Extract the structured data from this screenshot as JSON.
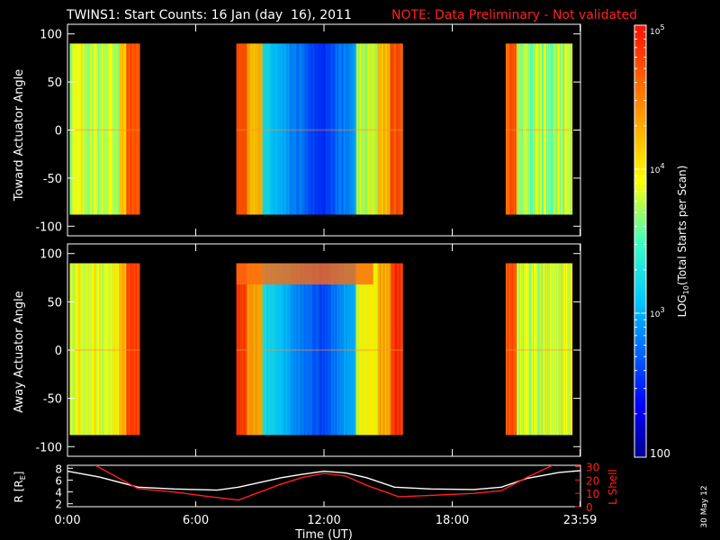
{
  "title": {
    "main": "TWINS1: Start Counts: 16 Jan (day  16), 2011",
    "note": "NOTE: Data Preliminary - Not validated",
    "note_color": "#ff2020"
  },
  "colors": {
    "axis": "#ffffff",
    "background": "#000000",
    "ephem_r": "#ffffff",
    "ephem_lshell": "#ff2020"
  },
  "date_stamp": "30 May 12",
  "chart_data": [
    {
      "type": "heatmap",
      "ylabel": "Toward Actuator Angle",
      "ylim": [
        -110,
        110
      ],
      "y_ticks": [
        "100",
        "50",
        "0",
        "-50",
        "-100"
      ],
      "xlim_hours": [
        0,
        24
      ],
      "data_blocks_hours": [
        [
          0.1,
          3.4
        ],
        [
          7.9,
          15.7
        ],
        [
          20.5,
          23.6
        ]
      ],
      "angle_range": [
        -88,
        90
      ],
      "grid": false
    },
    {
      "type": "heatmap",
      "ylabel": "Away Actuator Angle",
      "ylim": [
        -110,
        110
      ],
      "y_ticks": [
        "100",
        "50",
        "0",
        "-50",
        "-100"
      ],
      "xlim_hours": [
        0,
        24
      ],
      "data_blocks_hours": [
        [
          0.1,
          3.4
        ],
        [
          7.9,
          15.7
        ],
        [
          20.5,
          23.6
        ]
      ],
      "angle_range": [
        -88,
        90
      ],
      "grid": false
    },
    {
      "type": "line",
      "ylabel_left": "R [R",
      "ylabel_left_sub": "E",
      "ylabel_left_end": "]",
      "ylabel_right": "L Shell",
      "y_ticks_left": [
        "8",
        "6",
        "4",
        "2"
      ],
      "y_ticks_right": [
        "30",
        "20",
        "10",
        "0"
      ],
      "ylim_left": [
        1.5,
        8.5
      ],
      "ylim_right": [
        0,
        31
      ],
      "x_ticks": [
        "0:00",
        "6:00",
        "12:00",
        "18:00",
        "23:59"
      ],
      "x_tick_hours": [
        0,
        6,
        12,
        18,
        23.98
      ],
      "xlabel": "Time (UT)",
      "series": [
        {
          "name": "R",
          "axis": "left",
          "color": "#ffffff",
          "x": [
            0,
            1.5,
            3.3,
            5,
            7,
            8,
            9,
            10,
            11,
            12,
            13,
            14,
            15.3,
            17,
            19,
            20.3,
            21.5,
            23,
            24
          ],
          "y": [
            7.5,
            6.5,
            4.8,
            4.5,
            4.3,
            4.8,
            5.6,
            6.4,
            7.0,
            7.5,
            7.2,
            6.4,
            4.8,
            4.5,
            4.4,
            4.8,
            6.3,
            7.3,
            7.6
          ]
        },
        {
          "name": "L Shell",
          "axis": "right",
          "color": "#ff2020",
          "x": [
            1.3,
            3.3,
            5,
            6.5,
            8,
            9,
            10,
            11,
            12,
            13,
            14,
            15.5,
            17,
            19,
            20.3,
            21.5,
            22.7
          ],
          "y": [
            31,
            13.5,
            11,
            7.8,
            5,
            11,
            17,
            22,
            25,
            23,
            16,
            7.5,
            8.5,
            10,
            12,
            22,
            31
          ]
        }
      ]
    }
  ],
  "colorbar": {
    "label_prefix": "LOG",
    "label_sub": "10",
    "label_suffix": "(Total Starts per Scan)",
    "tick_labels": [
      {
        "base": "10",
        "exp": "5",
        "value": 100000
      },
      {
        "base": "10",
        "exp": "4",
        "value": 10000
      },
      {
        "base": "10",
        "exp": "3",
        "value": 1000
      },
      {
        "base": "100",
        "exp": "",
        "value": 100
      }
    ],
    "range": [
      100,
      100000
    ],
    "scale": "log"
  }
}
